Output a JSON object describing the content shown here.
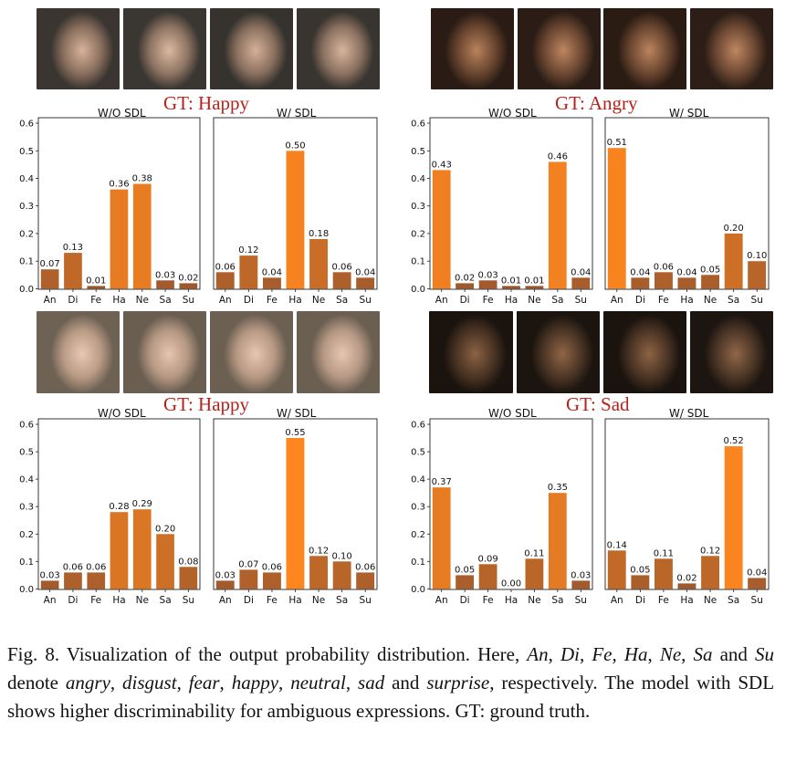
{
  "categories": [
    "An",
    "Di",
    "Fe",
    "Ha",
    "Ne",
    "Sa",
    "Su"
  ],
  "y_ticks": [
    "0.0",
    "0.1",
    "0.2",
    "0.3",
    "0.4",
    "0.5",
    "0.6"
  ],
  "panels": [
    {
      "gt_label": "GT: Happy",
      "left_title": "W/O SDL",
      "right_title": "W/ SDL",
      "thumb_colors": [
        [
          "#3a3530",
          "#8a6f5e",
          "#d8b29a"
        ],
        [
          "#3a3632",
          "#8f7563",
          "#dcb8a0"
        ],
        [
          "#36322e",
          "#8a705f",
          "#d6b099"
        ],
        [
          "#38342f",
          "#8c7261",
          "#d9b49c"
        ]
      ]
    },
    {
      "gt_label": "GT: Angry",
      "left_title": "W/O SDL",
      "right_title": "W/ SDL",
      "thumb_colors": [
        [
          "#2a1c14",
          "#6a4630",
          "#b9825c"
        ],
        [
          "#2b1d15",
          "#6d4833",
          "#bd865f"
        ],
        [
          "#2a1b13",
          "#6b4731",
          "#bb845d"
        ],
        [
          "#2c1e16",
          "#6e4934",
          "#be8760"
        ]
      ]
    },
    {
      "gt_label": "GT: Happy",
      "left_title": "W/O SDL",
      "right_title": "W/ SDL",
      "thumb_colors": [
        [
          "#6e6254",
          "#b99a85",
          "#e8c8b4"
        ],
        [
          "#6a5e51",
          "#b59782",
          "#e6c5b0"
        ],
        [
          "#6c6053",
          "#b79883",
          "#e7c6b2"
        ],
        [
          "#6b5f52",
          "#b69884",
          "#e6c6b1"
        ]
      ]
    },
    {
      "gt_label": "GT: Sad",
      "left_title": "W/O SDL",
      "right_title": "W/ SDL",
      "thumb_colors": [
        [
          "#1a130e",
          "#4a3424",
          "#8c6243"
        ],
        [
          "#1b140f",
          "#4c3626",
          "#906546"
        ],
        [
          "#1a130e",
          "#4b3525",
          "#8e6344"
        ],
        [
          "#1c1510",
          "#4d3727",
          "#916647"
        ]
      ]
    }
  ],
  "chart_data": [
    {
      "type": "bar",
      "title": "W/O SDL",
      "ylim": [
        0,
        0.6
      ],
      "categories": [
        "An",
        "Di",
        "Fe",
        "Ha",
        "Ne",
        "Sa",
        "Su"
      ],
      "values": [
        0.07,
        0.13,
        0.01,
        0.36,
        0.38,
        0.03,
        0.02
      ],
      "labels": [
        "0.07",
        "0.13",
        "0.01",
        "0.36",
        "0.38",
        "0.03",
        "0.02"
      ]
    },
    {
      "type": "bar",
      "title": "W/ SDL",
      "ylim": [
        0,
        0.6
      ],
      "categories": [
        "An",
        "Di",
        "Fe",
        "Ha",
        "Ne",
        "Sa",
        "Su"
      ],
      "values": [
        0.06,
        0.12,
        0.04,
        0.5,
        0.18,
        0.06,
        0.04
      ],
      "labels": [
        "0.06",
        "0.12",
        "0.04",
        "0.50",
        "0.18",
        "0.06",
        "0.04"
      ]
    },
    {
      "type": "bar",
      "title": "W/O SDL",
      "ylim": [
        0,
        0.6
      ],
      "categories": [
        "An",
        "Di",
        "Fe",
        "Ha",
        "Ne",
        "Sa",
        "Su"
      ],
      "values": [
        0.43,
        0.02,
        0.03,
        0.01,
        0.01,
        0.46,
        0.04
      ],
      "labels": [
        "0.43",
        "0.02",
        "0.03",
        "0.01",
        "0.01",
        "0.46",
        "0.04"
      ]
    },
    {
      "type": "bar",
      "title": "W/ SDL",
      "ylim": [
        0,
        0.6
      ],
      "categories": [
        "An",
        "Di",
        "Fe",
        "Ha",
        "Ne",
        "Sa",
        "Su"
      ],
      "values": [
        0.51,
        0.04,
        0.06,
        0.04,
        0.05,
        0.2,
        0.1
      ],
      "labels": [
        "0.51",
        "0.04",
        "0.06",
        "0.04",
        "0.05",
        "0.20",
        "0.10"
      ]
    },
    {
      "type": "bar",
      "title": "W/O SDL",
      "ylim": [
        0,
        0.6
      ],
      "categories": [
        "An",
        "Di",
        "Fe",
        "Ha",
        "Ne",
        "Sa",
        "Su"
      ],
      "values": [
        0.03,
        0.06,
        0.06,
        0.28,
        0.29,
        0.2,
        0.08
      ],
      "labels": [
        "0.03",
        "0.06",
        "0.06",
        "0.28",
        "0.29",
        "0.20",
        "0.08"
      ]
    },
    {
      "type": "bar",
      "title": "W/ SDL",
      "ylim": [
        0,
        0.6
      ],
      "categories": [
        "An",
        "Di",
        "Fe",
        "Ha",
        "Ne",
        "Sa",
        "Su"
      ],
      "values": [
        0.03,
        0.07,
        0.06,
        0.55,
        0.12,
        0.1,
        0.06
      ],
      "labels": [
        "0.03",
        "0.07",
        "0.06",
        "0.55",
        "0.12",
        "0.10",
        "0.06"
      ]
    },
    {
      "type": "bar",
      "title": "W/O SDL",
      "ylim": [
        0,
        0.6
      ],
      "categories": [
        "An",
        "Di",
        "Fe",
        "Ha",
        "Ne",
        "Sa",
        "Su"
      ],
      "values": [
        0.37,
        0.05,
        0.09,
        0.0,
        0.11,
        0.35,
        0.03
      ],
      "labels": [
        "0.37",
        "0.05",
        "0.09",
        "0.00",
        "0.11",
        "0.35",
        "0.03"
      ]
    },
    {
      "type": "bar",
      "title": "W/ SDL",
      "ylim": [
        0,
        0.6
      ],
      "categories": [
        "An",
        "Di",
        "Fe",
        "Ha",
        "Ne",
        "Sa",
        "Su"
      ],
      "values": [
        0.14,
        0.05,
        0.11,
        0.02,
        0.12,
        0.52,
        0.04
      ],
      "labels": [
        "0.14",
        "0.05",
        "0.11",
        "0.02",
        "0.12",
        "0.52",
        "0.04"
      ]
    }
  ],
  "caption": {
    "part1": "Fig. 8.   Visualization of the output probability distribution. Here, ",
    "t_an": "An",
    "c1": ", ",
    "t_di": "Di",
    "c2": ", ",
    "t_fe": "Fe",
    "c3": ", ",
    "t_ha": "Ha",
    "c4": ", ",
    "t_ne": "Ne",
    "c5": ", ",
    "t_sa": "Sa",
    "c6": " and ",
    "t_su": "Su",
    "c7": " denote ",
    "w_angry": "angry",
    "c8": ", ",
    "w_disgust": "disgust",
    "c9": ", ",
    "w_fear": "fear",
    "c10": ", ",
    "w_happy": "happy",
    "c11": ", ",
    "w_neutral": "neutral",
    "c12": ", ",
    "w_sad": "sad",
    "c13": " and ",
    "w_surprise": "surprise",
    "part2": ", respectively. The model with SDL shows higher discriminability for ambiguous expressions. GT: ground truth."
  }
}
